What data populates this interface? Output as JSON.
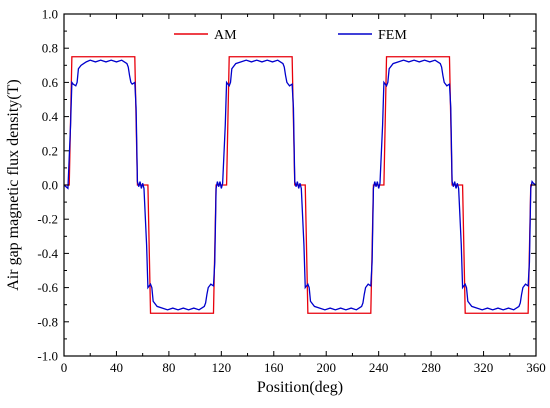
{
  "chart_data": {
    "type": "line",
    "title": "",
    "xlabel": "Position(deg)",
    "ylabel": "Air gap magnetic flux density(T)",
    "xlim": [
      0,
      360
    ],
    "ylim": [
      -1.0,
      1.0
    ],
    "xticks": [
      0,
      40,
      80,
      120,
      160,
      200,
      240,
      280,
      320,
      360
    ],
    "yticks": [
      -1.0,
      -0.8,
      -0.6,
      -0.4,
      -0.2,
      0.0,
      0.2,
      0.4,
      0.6,
      0.8,
      1.0
    ],
    "xtick_labels": [
      "0",
      "40",
      "80",
      "120",
      "160",
      "200",
      "240",
      "280",
      "320",
      "360"
    ],
    "ytick_labels": [
      "-1.0",
      "-0.8",
      "-0.6",
      "-0.4",
      "-0.2",
      "0.0",
      "0.2",
      "0.4",
      "0.6",
      "0.8",
      "1.0"
    ],
    "grid": false,
    "legend_position": "top",
    "series": [
      {
        "name": "AM",
        "color": "#e8000b",
        "x": [
          0,
          4,
          6,
          54,
          56,
          64,
          66,
          114,
          116,
          124,
          126,
          174,
          176,
          184,
          186,
          234,
          236,
          244,
          246,
          294,
          296,
          304,
          306,
          354,
          356,
          360
        ],
        "y": [
          0,
          0,
          0.75,
          0.75,
          0,
          0,
          -0.75,
          -0.75,
          0,
          0,
          0.75,
          0.75,
          0,
          0,
          -0.75,
          -0.75,
          0,
          0,
          0.75,
          0.75,
          0,
          0,
          -0.75,
          -0.75,
          0,
          0
        ]
      },
      {
        "name": "FEM",
        "color": "#0000cc",
        "x": [
          0,
          3,
          5,
          6,
          7,
          9,
          10,
          11,
          13,
          15,
          17,
          20,
          24,
          28,
          32,
          36,
          40,
          44,
          48,
          49,
          50,
          51,
          52,
          54,
          55,
          56,
          57,
          58,
          59,
          60,
          61,
          63,
          64,
          65,
          66,
          67,
          68,
          71,
          75,
          79,
          83,
          87,
          91,
          95,
          99,
          103,
          107,
          108,
          109,
          110,
          111,
          112,
          114,
          115,
          116,
          117,
          118,
          119,
          120,
          121,
          123,
          124,
          125,
          126,
          127,
          128,
          131,
          135,
          139,
          143,
          147,
          151,
          155,
          159,
          163,
          167,
          168,
          169,
          170,
          171,
          172,
          174,
          175,
          176,
          177,
          178,
          179,
          180,
          181,
          183,
          184,
          185,
          186,
          187,
          188,
          191,
          195,
          199,
          203,
          207,
          211,
          215,
          219,
          223,
          227,
          228,
          229,
          230,
          231,
          232,
          234,
          235,
          236,
          237,
          238,
          239,
          240,
          241,
          243,
          244,
          245,
          246,
          247,
          248,
          251,
          255,
          259,
          263,
          267,
          271,
          275,
          279,
          283,
          287,
          288,
          289,
          290,
          291,
          292,
          294,
          295,
          296,
          297,
          298,
          299,
          300,
          301,
          303,
          304,
          305,
          306,
          307,
          308,
          311,
          315,
          319,
          323,
          327,
          331,
          335,
          339,
          343,
          347,
          348,
          349,
          350,
          351,
          352,
          354,
          355,
          356,
          357,
          358,
          360
        ],
        "y": [
          0,
          -0.02,
          0.35,
          0.6,
          0.59,
          0.58,
          0.6,
          0.68,
          0.7,
          0.71,
          0.72,
          0.73,
          0.72,
          0.73,
          0.72,
          0.73,
          0.72,
          0.73,
          0.71,
          0.69,
          0.64,
          0.6,
          0.59,
          0.6,
          0.45,
          0.02,
          -0.01,
          0.02,
          -0.02,
          0.01,
          -0.02,
          -0.35,
          -0.6,
          -0.59,
          -0.58,
          -0.6,
          -0.68,
          -0.71,
          -0.72,
          -0.73,
          -0.72,
          -0.73,
          -0.72,
          -0.73,
          -0.72,
          -0.73,
          -0.71,
          -0.69,
          -0.64,
          -0.6,
          -0.59,
          -0.58,
          -0.59,
          -0.45,
          -0.02,
          0.02,
          -0.01,
          0.02,
          -0.02,
          0.01,
          0.35,
          0.6,
          0.59,
          0.58,
          0.6,
          0.68,
          0.71,
          0.72,
          0.73,
          0.72,
          0.73,
          0.72,
          0.73,
          0.72,
          0.73,
          0.71,
          0.69,
          0.64,
          0.6,
          0.59,
          0.58,
          0.59,
          0.45,
          0.02,
          -0.01,
          0.02,
          -0.02,
          0.01,
          -0.02,
          -0.35,
          -0.6,
          -0.59,
          -0.58,
          -0.6,
          -0.68,
          -0.71,
          -0.72,
          -0.73,
          -0.72,
          -0.73,
          -0.72,
          -0.73,
          -0.72,
          -0.73,
          -0.71,
          -0.69,
          -0.64,
          -0.6,
          -0.59,
          -0.58,
          -0.59,
          -0.45,
          -0.02,
          0.02,
          -0.01,
          0.02,
          -0.02,
          0.01,
          0.35,
          0.6,
          0.59,
          0.58,
          0.6,
          0.68,
          0.71,
          0.72,
          0.73,
          0.72,
          0.73,
          0.72,
          0.73,
          0.72,
          0.73,
          0.71,
          0.69,
          0.64,
          0.6,
          0.59,
          0.58,
          0.59,
          0.45,
          0.02,
          -0.01,
          0.02,
          -0.02,
          0.01,
          -0.02,
          -0.35,
          -0.6,
          -0.59,
          -0.58,
          -0.6,
          -0.68,
          -0.71,
          -0.72,
          -0.73,
          -0.72,
          -0.73,
          -0.72,
          -0.73,
          -0.72,
          -0.73,
          -0.71,
          -0.69,
          -0.64,
          -0.6,
          -0.59,
          -0.58,
          -0.59,
          -0.45,
          -0.02,
          0.02,
          0.01,
          0
        ]
      }
    ]
  }
}
